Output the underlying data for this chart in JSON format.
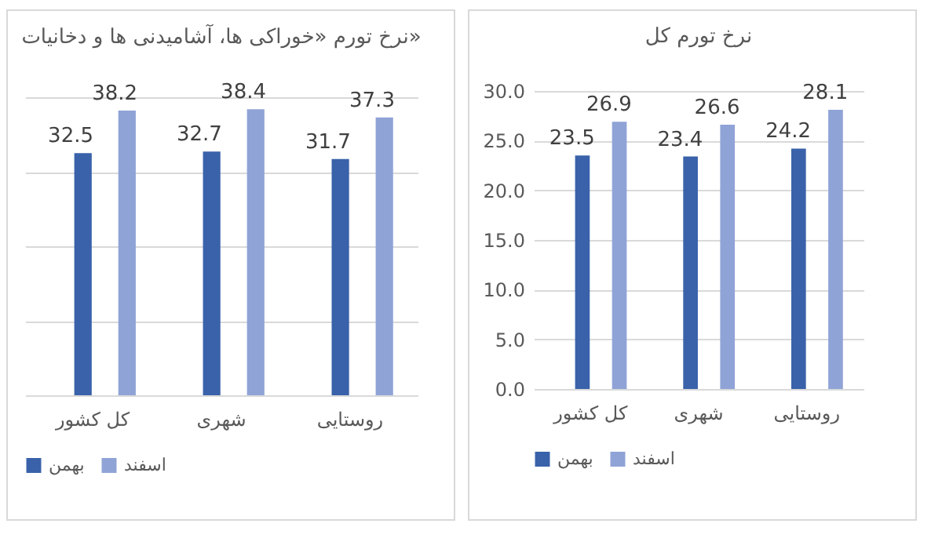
{
  "chart_data": [
    {
      "type": "bar",
      "title": "نرخ تورم «خوراکی ها، آشامیدنی ها و دخانیات»",
      "categories": [
        "کل کشور",
        "شهری",
        "روستایی"
      ],
      "series": [
        {
          "name": "بهمن",
          "color": "#3a62aa",
          "values": [
            32.5,
            32.7,
            31.7
          ]
        },
        {
          "name": "اسفند",
          "color": "#8fa3d6",
          "values": [
            38.2,
            38.4,
            37.3
          ]
        }
      ],
      "tick_labels": "x",
      "grid": "y",
      "legend": "bottom",
      "data_labels": true
    },
    {
      "type": "bar",
      "title": "نرخ تورم کل",
      "categories": [
        "کل کشور",
        "شهری",
        "روستایی"
      ],
      "series": [
        {
          "name": "بهمن",
          "color": "#3a62aa",
          "values": [
            23.5,
            23.4,
            24.2
          ]
        },
        {
          "name": "اسفند",
          "color": "#8fa3d6",
          "values": [
            26.9,
            26.6,
            28.1
          ]
        }
      ],
      "ylim": [
        0,
        30
      ],
      "yticks": [
        {
          "value": 0,
          "label": "0.0"
        },
        {
          "value": 5,
          "label": "5.0"
        },
        {
          "value": 10,
          "label": "10.0"
        },
        {
          "value": 15,
          "label": "15.0"
        },
        {
          "value": 20,
          "label": "20.0"
        },
        {
          "value": 25,
          "label": "25.0"
        },
        {
          "value": 30,
          "label": "30.0"
        }
      ],
      "grid": "y",
      "legend": "bottom",
      "data_labels": true
    }
  ]
}
